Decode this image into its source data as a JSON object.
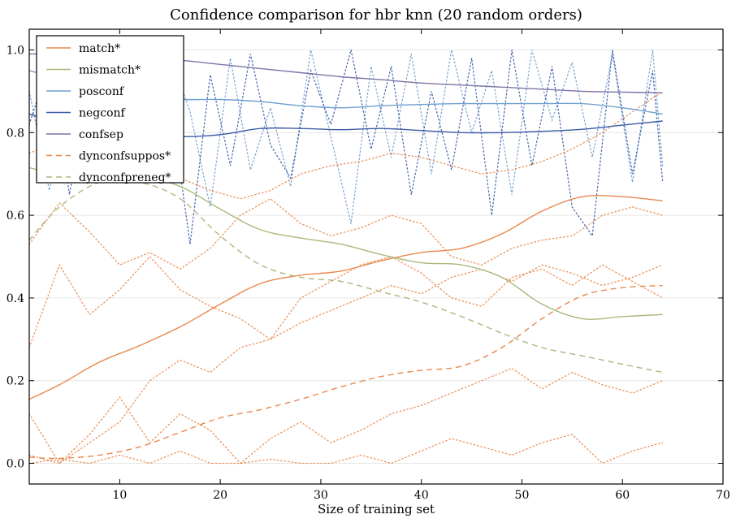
{
  "chart_data": {
    "type": "line",
    "title": "Confidence comparison for hbr knn (20 random orders)",
    "xlabel": "Size of training set",
    "ylabel": "",
    "xlim": [
      1,
      70
    ],
    "ylim": [
      -0.05,
      1.05
    ],
    "xticks": [
      10,
      20,
      30,
      40,
      50,
      60,
      70
    ],
    "yticks": [
      0.0,
      0.2,
      0.4,
      0.6,
      0.8,
      1.0
    ],
    "ytick_labels": [
      "0.0",
      "0.2",
      "0.4",
      "0.6",
      "0.8",
      "1.0"
    ],
    "grid": "horizontal",
    "legend_position": "upper-left",
    "series": [
      {
        "name": "match*",
        "style": "solid",
        "color": "#e8884a",
        "x": [
          1,
          4,
          8,
          12,
          16,
          20,
          24,
          28,
          32,
          36,
          40,
          44,
          48,
          52,
          56,
          60,
          64
        ],
        "y": [
          0.155,
          0.19,
          0.245,
          0.285,
          0.33,
          0.385,
          0.435,
          0.455,
          0.465,
          0.49,
          0.51,
          0.52,
          0.555,
          0.61,
          0.645,
          0.645,
          0.635
        ]
      },
      {
        "name": "mismatch*",
        "style": "solid",
        "color": "#a8b97a",
        "x": [
          1,
          4,
          8,
          12,
          16,
          20,
          24,
          28,
          32,
          36,
          40,
          44,
          48,
          52,
          56,
          60,
          64
        ],
        "y": [
          0.715,
          0.7,
          0.7,
          0.695,
          0.67,
          0.615,
          0.565,
          0.545,
          0.53,
          0.505,
          0.485,
          0.48,
          0.45,
          0.385,
          0.35,
          0.355,
          0.36
        ]
      },
      {
        "name": "posconf",
        "style": "solid",
        "color": "#6f9fcf",
        "x": [
          1,
          4,
          8,
          12,
          16,
          20,
          24,
          28,
          32,
          36,
          40,
          44,
          48,
          52,
          56,
          60,
          64
        ],
        "y": [
          0.95,
          0.93,
          0.9,
          0.885,
          0.88,
          0.88,
          0.875,
          0.865,
          0.86,
          0.865,
          0.868,
          0.87,
          0.87,
          0.87,
          0.87,
          0.86,
          0.845
        ]
      },
      {
        "name": "negconf",
        "style": "solid",
        "color": "#3a5ba8",
        "x": [
          1,
          4,
          8,
          12,
          16,
          20,
          24,
          28,
          32,
          36,
          40,
          44,
          48,
          52,
          56,
          60,
          64
        ],
        "y": [
          0.845,
          0.825,
          0.815,
          0.795,
          0.79,
          0.795,
          0.81,
          0.81,
          0.807,
          0.81,
          0.805,
          0.8,
          0.8,
          0.803,
          0.808,
          0.818,
          0.828
        ]
      },
      {
        "name": "confsep",
        "style": "solid",
        "color": "#7f72a8",
        "x": [
          1,
          4,
          8,
          12,
          16,
          20,
          24,
          28,
          32,
          36,
          40,
          44,
          48,
          52,
          56,
          60,
          64
        ],
        "y": [
          0.99,
          0.99,
          0.985,
          0.98,
          0.975,
          0.965,
          0.955,
          0.945,
          0.935,
          0.928,
          0.92,
          0.915,
          0.91,
          0.905,
          0.9,
          0.898,
          0.896
        ]
      },
      {
        "name": "dynconfsuppos*",
        "style": "dashed",
        "color": "#e8884a",
        "x": [
          1,
          4,
          8,
          12,
          16,
          20,
          24,
          28,
          32,
          36,
          40,
          44,
          48,
          52,
          56,
          60,
          64
        ],
        "y": [
          0.015,
          0.012,
          0.02,
          0.04,
          0.075,
          0.11,
          0.13,
          0.155,
          0.185,
          0.21,
          0.225,
          0.235,
          0.28,
          0.35,
          0.405,
          0.425,
          0.43
        ]
      },
      {
        "name": "dynconfpreneg*",
        "style": "dashed",
        "color": "#a8b97a",
        "x": [
          1,
          4,
          8,
          12,
          16,
          20,
          24,
          28,
          32,
          36,
          40,
          44,
          48,
          52,
          56,
          60,
          64
        ],
        "y": [
          0.54,
          0.62,
          0.68,
          0.68,
          0.64,
          0.55,
          0.48,
          0.45,
          0.44,
          0.415,
          0.39,
          0.355,
          0.315,
          0.28,
          0.26,
          0.24,
          0.22
        ]
      }
    ],
    "dotted_series": [
      {
        "color": "#6f9fcf",
        "x": [
          1,
          3,
          5,
          7,
          9,
          11,
          13,
          15,
          17,
          19,
          21,
          23,
          25,
          27,
          29,
          31,
          33,
          35,
          37,
          39,
          41,
          43,
          45,
          47,
          49,
          51,
          53,
          55,
          57,
          59,
          61,
          63,
          64
        ],
        "y": [
          0.9,
          0.66,
          0.93,
          0.82,
          0.96,
          0.88,
          0.74,
          0.99,
          0.85,
          0.62,
          0.98,
          0.71,
          0.86,
          0.67,
          1.0,
          0.79,
          0.58,
          0.96,
          0.74,
          0.99,
          0.7,
          1.0,
          0.8,
          0.95,
          0.65,
          1.0,
          0.83,
          0.97,
          0.74,
          0.99,
          0.68,
          1.0,
          0.72
        ]
      },
      {
        "color": "#3a5ba8",
        "x": [
          1,
          3,
          5,
          7,
          9,
          11,
          13,
          15,
          17,
          19,
          21,
          23,
          25,
          27,
          29,
          31,
          33,
          35,
          37,
          39,
          41,
          43,
          45,
          47,
          49,
          51,
          53,
          55,
          57,
          59,
          61,
          63,
          64
        ],
        "y": [
          0.82,
          0.97,
          0.65,
          0.93,
          0.8,
          0.99,
          0.7,
          0.88,
          0.53,
          0.94,
          0.72,
          0.99,
          0.77,
          0.69,
          0.95,
          0.82,
          1.0,
          0.76,
          0.96,
          0.65,
          0.9,
          0.71,
          0.98,
          0.6,
          1.0,
          0.72,
          0.96,
          0.62,
          0.55,
          1.0,
          0.7,
          0.95,
          0.68
        ]
      },
      {
        "color": "#e8884a",
        "x": [
          1,
          4,
          7,
          10,
          13,
          16,
          19,
          22,
          25,
          28,
          31,
          34,
          37,
          40,
          43,
          46,
          49,
          52,
          55,
          58,
          61,
          64
        ],
        "y": [
          0.75,
          0.78,
          0.73,
          0.76,
          0.71,
          0.69,
          0.66,
          0.64,
          0.66,
          0.7,
          0.72,
          0.73,
          0.75,
          0.74,
          0.72,
          0.7,
          0.71,
          0.73,
          0.76,
          0.8,
          0.85,
          0.9
        ]
      },
      {
        "color": "#e8884a",
        "x": [
          1,
          4,
          7,
          10,
          13,
          16,
          19,
          22,
          25,
          28,
          31,
          34,
          37,
          40,
          43,
          46,
          49,
          52,
          55,
          58,
          61,
          64
        ],
        "y": [
          0.53,
          0.63,
          0.56,
          0.48,
          0.51,
          0.47,
          0.52,
          0.6,
          0.64,
          0.58,
          0.55,
          0.57,
          0.6,
          0.58,
          0.5,
          0.48,
          0.52,
          0.54,
          0.55,
          0.6,
          0.62,
          0.6
        ]
      },
      {
        "color": "#e8884a",
        "x": [
          1,
          4,
          7,
          10,
          13,
          16,
          19,
          22,
          25,
          28,
          31,
          34,
          37,
          40,
          43,
          46,
          49,
          52,
          55,
          58,
          61,
          64
        ],
        "y": [
          0.28,
          0.48,
          0.36,
          0.42,
          0.5,
          0.42,
          0.38,
          0.35,
          0.3,
          0.4,
          0.44,
          0.48,
          0.5,
          0.46,
          0.4,
          0.38,
          0.45,
          0.47,
          0.43,
          0.48,
          0.44,
          0.4
        ]
      },
      {
        "color": "#e8884a",
        "x": [
          1,
          4,
          7,
          10,
          13,
          16,
          19,
          22,
          25,
          28,
          31,
          34,
          37,
          40,
          43,
          46,
          49,
          52,
          55,
          58,
          61,
          64
        ],
        "y": [
          0.12,
          0.0,
          0.05,
          0.1,
          0.2,
          0.25,
          0.22,
          0.28,
          0.3,
          0.34,
          0.37,
          0.4,
          0.43,
          0.41,
          0.45,
          0.47,
          0.44,
          0.48,
          0.46,
          0.43,
          0.45,
          0.48
        ]
      },
      {
        "color": "#e8884a",
        "x": [
          1,
          4,
          7,
          10,
          13,
          16,
          19,
          22,
          25,
          28,
          31,
          34,
          37,
          40,
          43,
          46,
          49,
          52,
          55,
          58,
          61,
          64
        ],
        "y": [
          0.02,
          0.0,
          0.07,
          0.16,
          0.05,
          0.12,
          0.08,
          0.0,
          0.06,
          0.1,
          0.05,
          0.08,
          0.12,
          0.14,
          0.17,
          0.2,
          0.23,
          0.18,
          0.22,
          0.19,
          0.17,
          0.2
        ]
      },
      {
        "color": "#e8884a",
        "x": [
          1,
          4,
          7,
          10,
          13,
          16,
          19,
          22,
          25,
          28,
          31,
          34,
          37,
          40,
          43,
          46,
          49,
          52,
          55,
          58,
          61,
          64
        ],
        "y": [
          0.0,
          0.01,
          0.0,
          0.02,
          0.0,
          0.03,
          0.0,
          0.0,
          0.01,
          0.0,
          0.0,
          0.02,
          0.0,
          0.03,
          0.06,
          0.04,
          0.02,
          0.05,
          0.07,
          0.0,
          0.03,
          0.05
        ]
      }
    ]
  }
}
